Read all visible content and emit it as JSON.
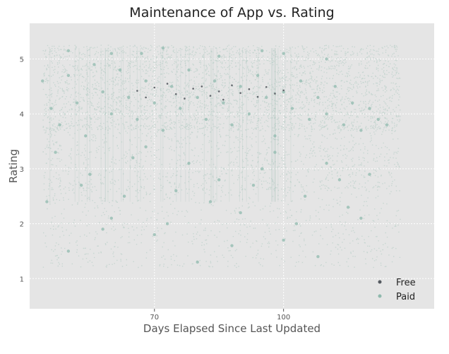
{
  "chart_data": {
    "type": "scatter",
    "title": "Maintenance of App vs. Rating",
    "xlabel": "Days Elapsed Since Last Updated",
    "ylabel": "Rating",
    "xlim": [
      41,
      135
    ],
    "ylim": [
      0.45,
      5.65
    ],
    "x_ticks": [
      {
        "value": 70,
        "label": "70"
      },
      {
        "value": 100,
        "label": "100"
      }
    ],
    "y_ticks": [
      {
        "value": 1,
        "label": "1"
      },
      {
        "value": 2,
        "label": "2"
      },
      {
        "value": 3,
        "label": "3"
      },
      {
        "value": 4,
        "label": "4"
      },
      {
        "value": 5,
        "label": "5"
      }
    ],
    "grid": true,
    "legend_position": "bottom-right",
    "colors": {
      "background": "#e5e5e5",
      "grid": "#ffffff",
      "paid": "#8fb9ad",
      "free": "#555a60"
    },
    "series": [
      {
        "name": "Free",
        "color": "#555a60",
        "points": [
          [
            66,
            4.42
          ],
          [
            68,
            4.3
          ],
          [
            70,
            4.48
          ],
          [
            73,
            4.55
          ],
          [
            75,
            4.36
          ],
          [
            77,
            4.28
          ],
          [
            79,
            4.46
          ],
          [
            81,
            4.5
          ],
          [
            83,
            4.33
          ],
          [
            85,
            4.41
          ],
          [
            86,
            4.26
          ],
          [
            88,
            4.52
          ],
          [
            90,
            4.38
          ],
          [
            92,
            4.45
          ],
          [
            94,
            4.31
          ],
          [
            96,
            4.49
          ],
          [
            98,
            4.37
          ],
          [
            100,
            4.43
          ]
        ]
      },
      {
        "name": "Paid",
        "color": "#8fb9ad",
        "points": [
          [
            44,
            4.6
          ],
          [
            46,
            4.1
          ],
          [
            48,
            3.8
          ],
          [
            50,
            4.7
          ],
          [
            52,
            4.2
          ],
          [
            54,
            3.6
          ],
          [
            56,
            4.9
          ],
          [
            58,
            4.4
          ],
          [
            60,
            4.0
          ],
          [
            62,
            4.8
          ],
          [
            64,
            4.3
          ],
          [
            66,
            3.9
          ],
          [
            68,
            4.6
          ],
          [
            70,
            4.2
          ],
          [
            72,
            3.7
          ],
          [
            74,
            4.5
          ],
          [
            76,
            4.1
          ],
          [
            78,
            4.8
          ],
          [
            80,
            4.3
          ],
          [
            82,
            3.9
          ],
          [
            84,
            4.6
          ],
          [
            86,
            4.2
          ],
          [
            88,
            3.8
          ],
          [
            90,
            4.5
          ],
          [
            92,
            4.0
          ],
          [
            94,
            4.7
          ],
          [
            96,
            4.3
          ],
          [
            98,
            3.6
          ],
          [
            100,
            4.4
          ],
          [
            102,
            4.1
          ],
          [
            104,
            4.6
          ],
          [
            106,
            3.9
          ],
          [
            108,
            4.3
          ],
          [
            110,
            4.0
          ],
          [
            112,
            4.5
          ],
          [
            114,
            3.8
          ],
          [
            116,
            4.2
          ],
          [
            118,
            3.7
          ],
          [
            120,
            4.1
          ],
          [
            122,
            3.9
          ],
          [
            124,
            3.8
          ],
          [
            45,
            2.4
          ],
          [
            50,
            1.5
          ],
          [
            55,
            2.9
          ],
          [
            60,
            2.1
          ],
          [
            65,
            3.2
          ],
          [
            70,
            1.8
          ],
          [
            75,
            2.6
          ],
          [
            80,
            1.3
          ],
          [
            85,
            2.8
          ],
          [
            90,
            2.2
          ],
          [
            95,
            3.0
          ],
          [
            100,
            1.7
          ],
          [
            105,
            2.5
          ],
          [
            110,
            3.1
          ],
          [
            115,
            2.3
          ],
          [
            120,
            2.9
          ],
          [
            47,
            3.3
          ],
          [
            53,
            2.7
          ],
          [
            58,
            1.9
          ],
          [
            63,
            2.5
          ],
          [
            68,
            3.4
          ],
          [
            73,
            2.0
          ],
          [
            78,
            3.1
          ],
          [
            83,
            2.4
          ],
          [
            88,
            1.6
          ],
          [
            93,
            2.7
          ],
          [
            98,
            3.3
          ],
          [
            103,
            2.0
          ],
          [
            108,
            1.4
          ],
          [
            113,
            2.8
          ],
          [
            118,
            2.1
          ],
          [
            67,
            5.1
          ],
          [
            72,
            5.2
          ],
          [
            85,
            5.05
          ],
          [
            95,
            5.15
          ],
          [
            60,
            5.1
          ],
          [
            110,
            5.0
          ],
          [
            50,
            5.15
          ],
          [
            100,
            5.1
          ]
        ]
      }
    ]
  }
}
